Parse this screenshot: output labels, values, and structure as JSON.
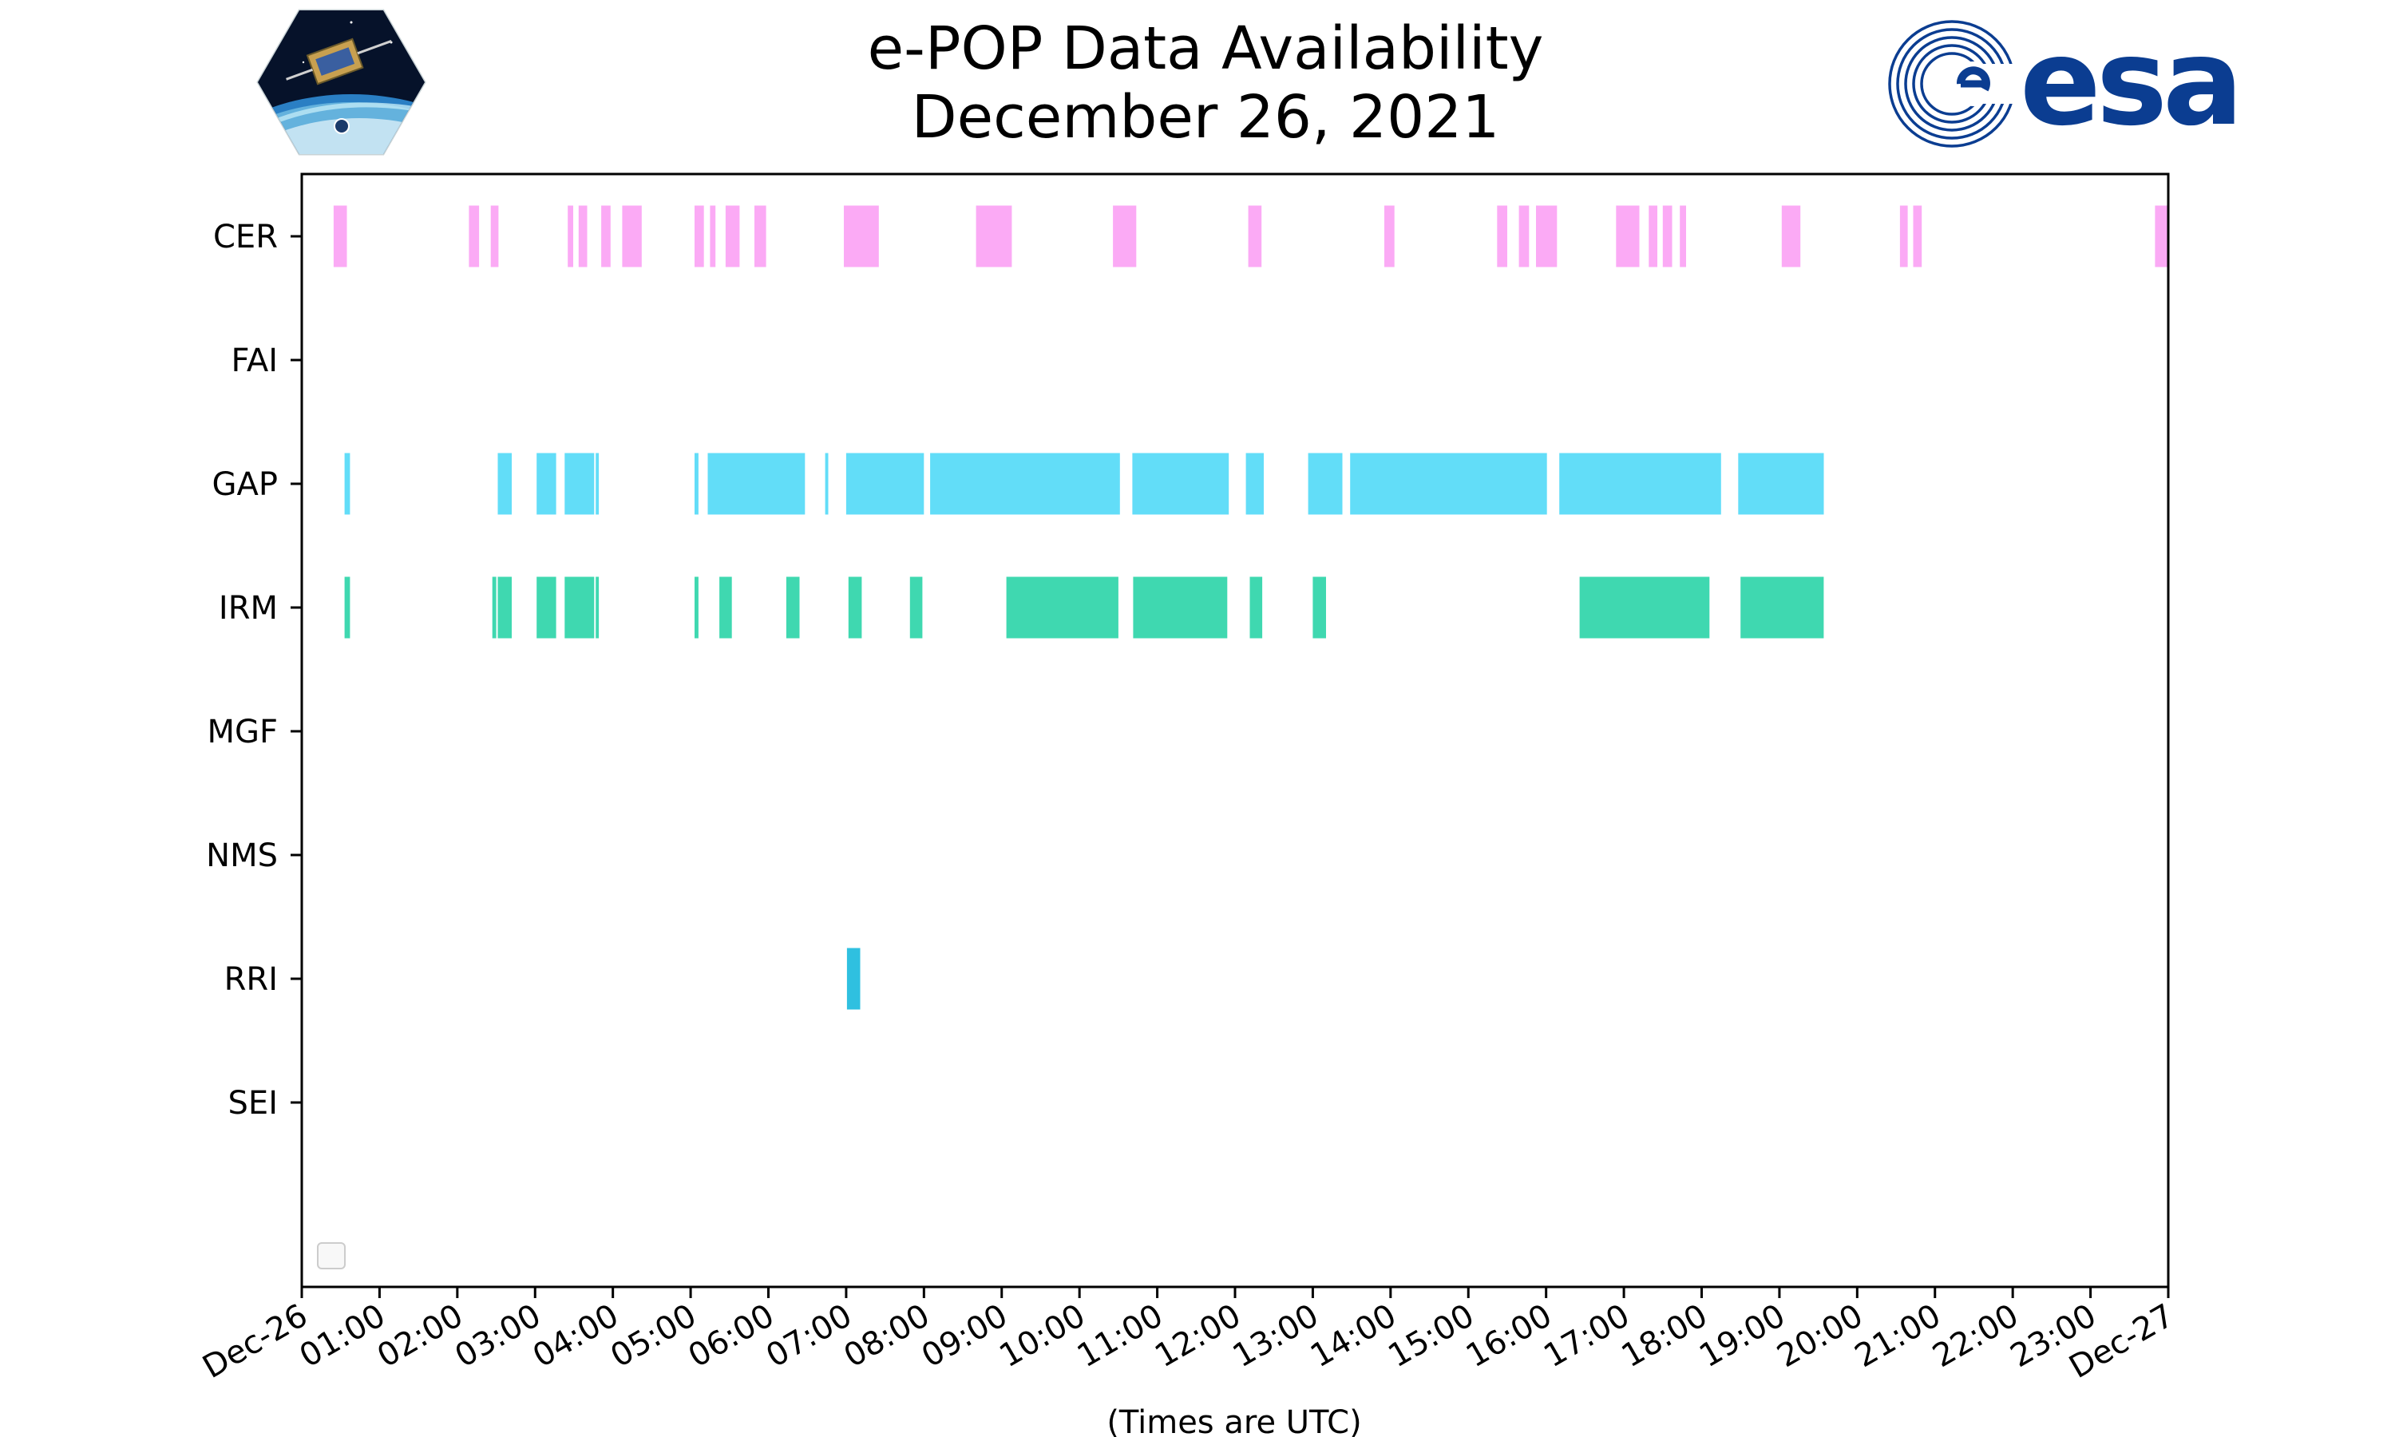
{
  "chart_data": {
    "type": "timeline",
    "title_lines": [
      "e-POP Data Availability",
      "December 26, 2021"
    ],
    "xlabel": "(Times are UTC)",
    "ylabel": "",
    "xlim_hours": [
      0,
      24
    ],
    "x_tick_labels": [
      "Dec-26",
      "01:00",
      "02:00",
      "03:00",
      "04:00",
      "05:00",
      "06:00",
      "07:00",
      "08:00",
      "09:00",
      "10:00",
      "11:00",
      "12:00",
      "13:00",
      "14:00",
      "15:00",
      "16:00",
      "17:00",
      "18:00",
      "19:00",
      "20:00",
      "21:00",
      "22:00",
      "23:00",
      "Dec-27"
    ],
    "instruments": [
      "CER",
      "FAI",
      "GAP",
      "IRM",
      "MGF",
      "NMS",
      "RRI",
      "SEI"
    ],
    "colors": {
      "CER": "#fbaaf5",
      "GAP": "#62ddf8",
      "IRM": "#3fd8b0",
      "RRI": "#2fc0e0"
    },
    "series": [
      {
        "name": "CER",
        "intervals_hours": [
          [
            0.41,
            0.58
          ],
          [
            2.15,
            2.28
          ],
          [
            2.43,
            2.53
          ],
          [
            3.42,
            3.49
          ],
          [
            3.56,
            3.67
          ],
          [
            3.85,
            3.97
          ],
          [
            4.12,
            4.37
          ],
          [
            5.05,
            5.17
          ],
          [
            5.25,
            5.32
          ],
          [
            5.45,
            5.63
          ],
          [
            5.82,
            5.97
          ],
          [
            6.97,
            7.42
          ],
          [
            8.67,
            9.13
          ],
          [
            10.43,
            10.73
          ],
          [
            12.17,
            12.34
          ],
          [
            13.92,
            14.05
          ],
          [
            15.37,
            15.5
          ],
          [
            15.65,
            15.78
          ],
          [
            15.87,
            16.14
          ],
          [
            16.9,
            17.2
          ],
          [
            17.32,
            17.43
          ],
          [
            17.5,
            17.62
          ],
          [
            17.72,
            17.8
          ],
          [
            19.03,
            19.27
          ],
          [
            20.55,
            20.65
          ],
          [
            20.72,
            20.83
          ],
          [
            23.83,
            24.0
          ]
        ]
      },
      {
        "name": "FAI",
        "intervals_hours": []
      },
      {
        "name": "GAP",
        "intervals_hours": [
          [
            0.55,
            0.62
          ],
          [
            2.52,
            2.7
          ],
          [
            3.02,
            3.27
          ],
          [
            3.38,
            3.76
          ],
          [
            3.78,
            3.82
          ],
          [
            5.05,
            5.1
          ],
          [
            5.22,
            6.47
          ],
          [
            6.73,
            6.77
          ],
          [
            7.0,
            8.0
          ],
          [
            8.08,
            10.52
          ],
          [
            10.68,
            11.92
          ],
          [
            12.14,
            12.37
          ],
          [
            12.94,
            13.38
          ],
          [
            13.48,
            16.01
          ],
          [
            16.17,
            18.25
          ],
          [
            18.47,
            19.57
          ]
        ]
      },
      {
        "name": "IRM",
        "intervals_hours": [
          [
            0.55,
            0.62
          ],
          [
            2.45,
            2.5
          ],
          [
            2.52,
            2.7
          ],
          [
            3.02,
            3.27
          ],
          [
            3.38,
            3.76
          ],
          [
            3.78,
            3.82
          ],
          [
            5.05,
            5.1
          ],
          [
            5.37,
            5.53
          ],
          [
            6.23,
            6.4
          ],
          [
            7.03,
            7.2
          ],
          [
            7.82,
            7.98
          ],
          [
            9.06,
            10.5
          ],
          [
            10.69,
            11.9
          ],
          [
            12.19,
            12.35
          ],
          [
            13.0,
            13.17
          ],
          [
            16.43,
            18.1
          ],
          [
            18.5,
            19.57
          ]
        ]
      },
      {
        "name": "MGF",
        "intervals_hours": []
      },
      {
        "name": "NMS",
        "intervals_hours": []
      },
      {
        "name": "RRI",
        "intervals_hours": [
          [
            7.01,
            7.18
          ]
        ]
      },
      {
        "name": "SEI",
        "intervals_hours": []
      }
    ]
  }
}
